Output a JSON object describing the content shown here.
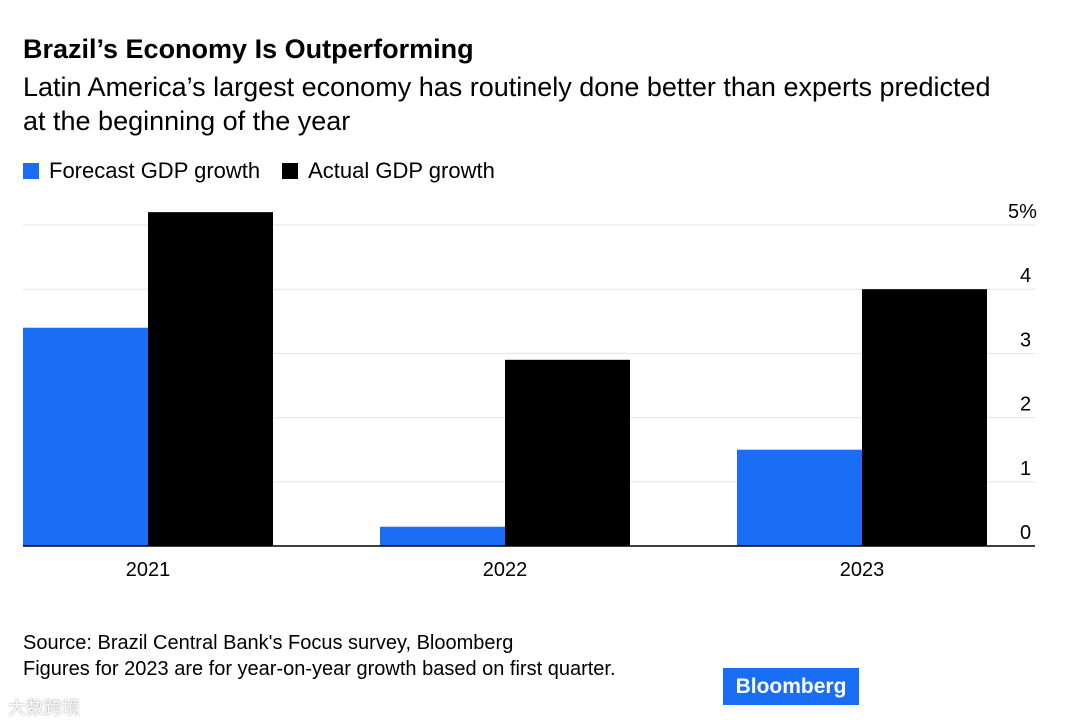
{
  "title": "Brazil’s Economy Is Outperforming",
  "subtitle": "Latin America’s largest economy has routinely done better than experts predicted at the beginning of the year",
  "source_lines": [
    "Source: Brazil Central Bank's Focus survey, Bloomberg",
    "Figures for 2023 are for year-on-year growth based on first quarter."
  ],
  "logo": "Bloomberg",
  "watermark": "大数跨境",
  "chart_data": {
    "type": "bar",
    "categories": [
      "2021",
      "2022",
      "2023"
    ],
    "series": [
      {
        "name": "Forecast GDP growth",
        "color": "#1a6ef5",
        "values": [
          3.4,
          0.3,
          1.5
        ]
      },
      {
        "name": "Actual GDP growth",
        "color": "#000000",
        "values": [
          5.2,
          2.9,
          4.0
        ]
      }
    ],
    "ylim": [
      0,
      5
    ],
    "yticks": [
      0,
      1,
      2,
      3,
      4,
      5
    ],
    "ytick_labels": [
      "0",
      "1",
      "2",
      "3",
      "4",
      "5%"
    ],
    "yaxis_side": "right",
    "grid": true,
    "legend": "top-left",
    "xlabel": "",
    "ylabel": ""
  }
}
